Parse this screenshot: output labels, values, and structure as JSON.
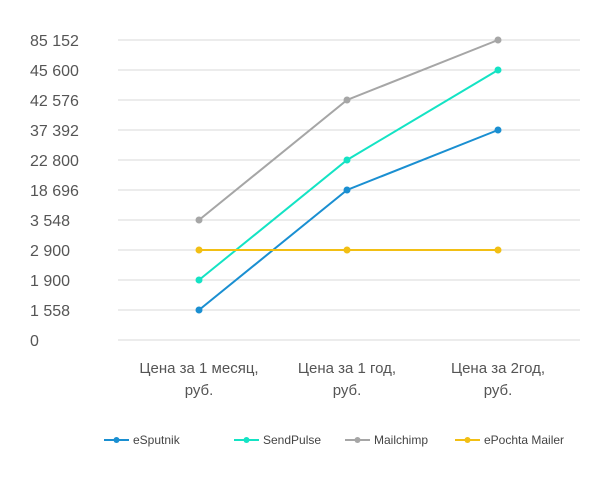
{
  "chart_data": {
    "type": "line",
    "categories": [
      [
        "Цена за 1 месяц,",
        "руб."
      ],
      [
        "Цена за 1 год,",
        "руб."
      ],
      [
        "Цена за 2год,",
        "руб."
      ]
    ],
    "y_ticks": [
      "0",
      "1 558",
      "1 900",
      "2 900",
      "3 548",
      "18 696",
      "22 800",
      "37 392",
      "42 576",
      "45 600",
      "85 152"
    ],
    "y_scale": "categorical (unevenly spaced tick values, points aligned to tick rows)",
    "series": [
      {
        "name": "eSputnik",
        "color": "#1a8fd1",
        "values": [
          1558,
          18696,
          37392
        ]
      },
      {
        "name": "SendPulse",
        "color": "#14e3c4",
        "values": [
          1900,
          22800,
          45600
        ]
      },
      {
        "name": "Mailchimp",
        "color": "#a6a6a6",
        "values": [
          3548,
          42576,
          85152
        ]
      },
      {
        "name": "ePochta Mailer",
        "color": "#f2bf14",
        "values": [
          2900,
          2900,
          2900
        ]
      }
    ],
    "grid": true,
    "legend_position": "bottom"
  }
}
